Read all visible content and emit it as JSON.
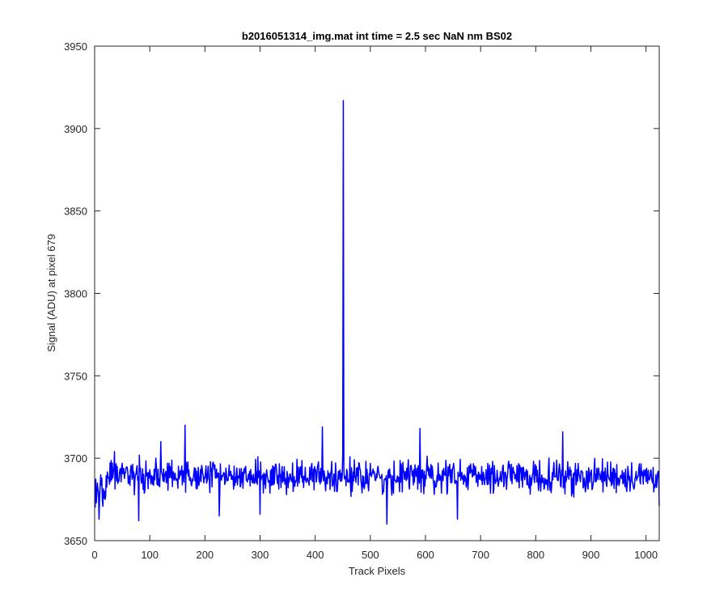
{
  "chart_data": {
    "type": "line",
    "title": "b2016051314_img.mat int time = 2.5 sec  NaN nm BS02",
    "xlabel": "Track Pixels",
    "ylabel": "Signal (ADU) at pixel 679",
    "xlim": [
      0,
      1024
    ],
    "ylim": [
      3650,
      3950
    ],
    "xticks": [
      0,
      100,
      200,
      300,
      400,
      500,
      600,
      700,
      800,
      900,
      1000
    ],
    "yticks": [
      3650,
      3700,
      3750,
      3800,
      3850,
      3900,
      3950
    ],
    "xtick_labels": [
      "0",
      "100",
      "200",
      "300",
      "400",
      "500",
      "600",
      "700",
      "800",
      "900",
      "1000"
    ],
    "ytick_labels": [
      "3650",
      "3700",
      "3750",
      "3800",
      "3850",
      "3900",
      "3950"
    ],
    "grid": false,
    "line_color": "#0000ff",
    "series": [
      {
        "x_start": 1,
        "x_step": 1,
        "baseline_mean": 3689,
        "noise_amplitude": 9,
        "spike_x": 451,
        "spike_value": 3917,
        "notable_points": [
          [
            1,
            3670
          ],
          [
            4,
            3678
          ],
          [
            8,
            3663
          ],
          [
            13,
            3688
          ],
          [
            18,
            3680
          ],
          [
            36,
            3704
          ],
          [
            80,
            3662
          ],
          [
            120,
            3710
          ],
          [
            164,
            3720
          ],
          [
            226,
            3665
          ],
          [
            300,
            3666
          ],
          [
            413,
            3719
          ],
          [
            451,
            3917
          ],
          [
            530,
            3660
          ],
          [
            590,
            3718
          ],
          [
            658,
            3663
          ],
          [
            849,
            3716
          ],
          [
            1024,
            3671
          ]
        ]
      }
    ]
  }
}
